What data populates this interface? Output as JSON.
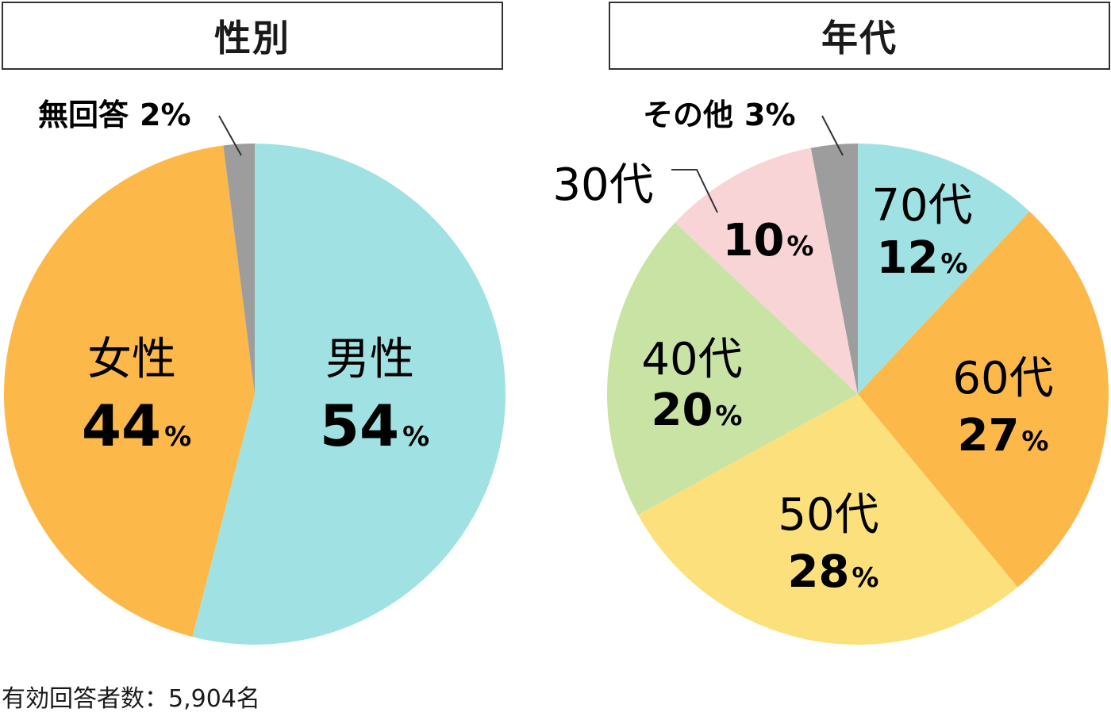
{
  "chart_data": [
    {
      "type": "pie",
      "title": "性別",
      "slices": [
        {
          "label": "男性",
          "value": 54,
          "value_text": "54",
          "unit": "%",
          "color": "#a0e2e3"
        },
        {
          "label": "女性",
          "value": 44,
          "value_text": "44",
          "unit": "%",
          "color": "#fdb84a"
        },
        {
          "label": "無回答",
          "value": 2,
          "value_text": "2%",
          "unit": "%",
          "color": "#9d9d9d"
        }
      ]
    },
    {
      "type": "pie",
      "title": "年代",
      "slices": [
        {
          "label": "70代",
          "value": 12,
          "value_text": "12",
          "unit": "%",
          "color": "#a0e2e3"
        },
        {
          "label": "60代",
          "value": 27,
          "value_text": "27",
          "unit": "%",
          "color": "#fdb84a"
        },
        {
          "label": "50代",
          "value": 28,
          "value_text": "28",
          "unit": "%",
          "color": "#fbe07c"
        },
        {
          "label": "40代",
          "value": 20,
          "value_text": "20",
          "unit": "%",
          "color": "#c9e3a5"
        },
        {
          "label": "30代",
          "value": 10,
          "value_text": "10",
          "unit": "%",
          "color": "#f8d4d6"
        },
        {
          "label": "その他",
          "value": 3,
          "value_text": "3%",
          "unit": "%",
          "color": "#9d9d9d"
        }
      ]
    }
  ],
  "footnote": "有効回答者数：5,904名"
}
